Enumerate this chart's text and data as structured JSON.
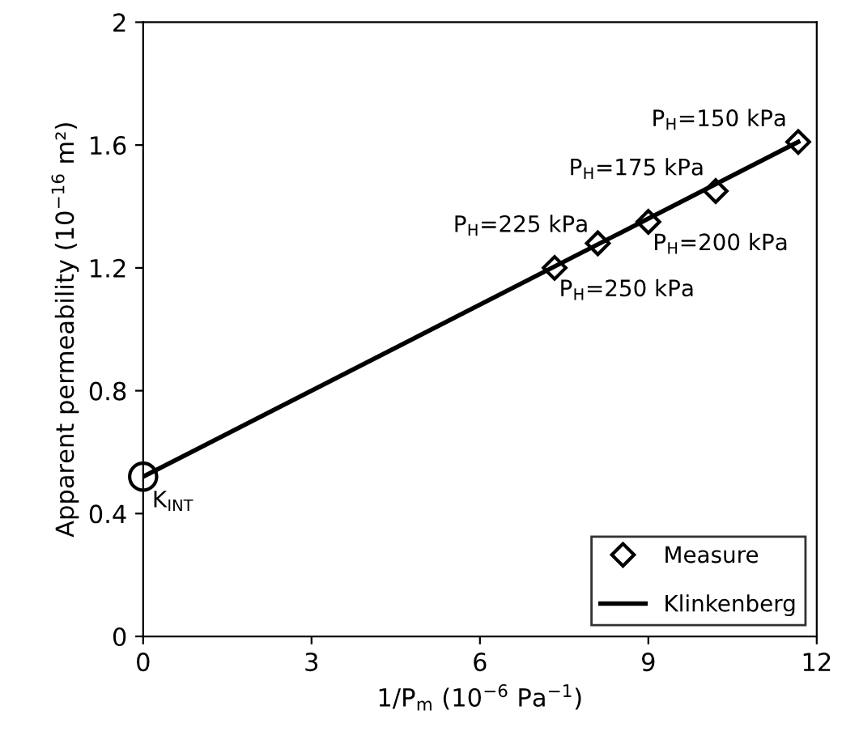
{
  "chart_data": {
    "type": "scatter",
    "xlabel": "1/P$_{m}$ (10$^{−6}$ Pa$^{−1}$)",
    "ylabel": "Apparent permeability (10$^{−16}$ m²)",
    "xlim": [
      0,
      12
    ],
    "xticks": [
      0,
      3,
      6,
      9,
      12
    ],
    "ylim": [
      0,
      2
    ],
    "yticks": [
      0,
      0.4,
      0.8,
      1.2,
      1.6,
      2
    ],
    "legend": "bottom right",
    "series": [
      {
        "name": "Klinkenberg",
        "type": "line",
        "color": "#000000",
        "marker": "none",
        "x": [
          0,
          11.67
        ],
        "values": [
          0.52,
          1.61
        ]
      },
      {
        "name": "Measure",
        "color": "#000000",
        "marker": "diamond",
        "x": [
          11.67,
          10.2,
          9.0,
          8.1,
          7.33
        ],
        "values": [
          1.61,
          1.45,
          1.35,
          1.28,
          1.2
        ]
      },
      {
        "color": "#000000",
        "marker": "circle",
        "x": [
          0
        ],
        "values": [
          0.52
        ]
      }
    ],
    "annotations": [
      {
        "text": "P$_{H}$=150 kPa",
        "x": 11.67,
        "y": 1.61
      },
      {
        "text": "P$_{H}$=175 kPa",
        "x": 10.2,
        "y": 1.45
      },
      {
        "text": "P$_{H}$=200 kPa",
        "x": 9.0,
        "y": 1.35
      },
      {
        "text": "P$_{H}$=225 kPa",
        "x": 8.1,
        "y": 1.28
      },
      {
        "text": "P$_{H}$=250 kPa",
        "x": 7.33,
        "y": 1.2
      },
      {
        "text": "K$_{INT}$",
        "x": 0,
        "y": 0.52
      }
    ]
  }
}
